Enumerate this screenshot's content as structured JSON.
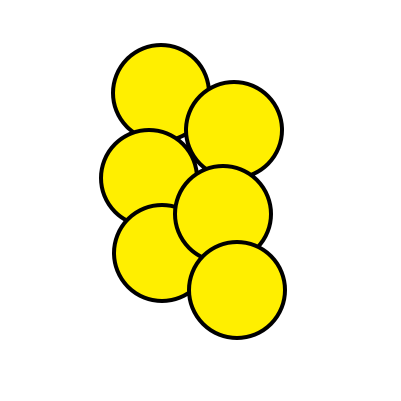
{
  "colors": {
    "background": "#ffffff",
    "circle_fill": "#ffef00",
    "circle_stroke": "#000000"
  },
  "circles": [
    {
      "name": "circle-top-left"
    },
    {
      "name": "circle-upper-right"
    },
    {
      "name": "circle-middle-left"
    },
    {
      "name": "circle-lower-left"
    },
    {
      "name": "circle-middle-right"
    },
    {
      "name": "circle-bottom-right"
    }
  ]
}
